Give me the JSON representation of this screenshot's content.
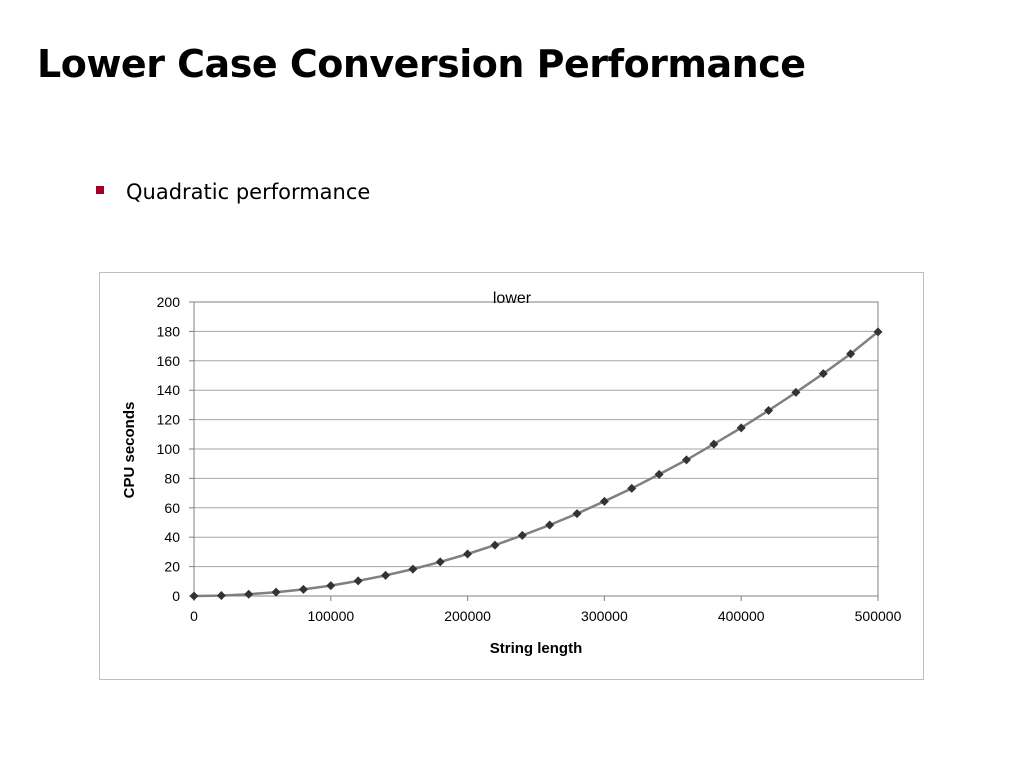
{
  "slide": {
    "title": "Lower Case Conversion Performance",
    "bullets": [
      "Quadratic performance"
    ],
    "bullet_color": "#a50021"
  },
  "chart_data": {
    "type": "line",
    "title": "lower",
    "xlabel": "String length",
    "ylabel": "CPU seconds",
    "xlim": [
      0,
      500000
    ],
    "ylim": [
      0,
      200
    ],
    "xticks": [
      0,
      100000,
      200000,
      300000,
      400000,
      500000
    ],
    "yticks": [
      0,
      20,
      40,
      60,
      80,
      100,
      120,
      140,
      160,
      180,
      200
    ],
    "grid": "horizontal",
    "marker": "diamond",
    "line_color": "#808080",
    "marker_color": "#333333",
    "series": [
      {
        "x": [
          0,
          20000,
          40000,
          60000,
          80000,
          100000,
          120000,
          140000,
          160000,
          180000,
          200000,
          220000,
          240000,
          260000,
          280000,
          300000,
          320000,
          340000,
          360000,
          380000,
          400000,
          420000,
          440000,
          460000,
          480000,
          500000
        ],
        "values": [
          0,
          0.3,
          1.2,
          2.6,
          4.5,
          7.1,
          10.3,
          14.0,
          18.3,
          23.2,
          28.6,
          34.6,
          41.2,
          48.3,
          56.0,
          64.4,
          73.2,
          82.7,
          92.6,
          103.3,
          114.4,
          126.2,
          138.5,
          151.3,
          164.7,
          179.7
        ]
      }
    ]
  }
}
